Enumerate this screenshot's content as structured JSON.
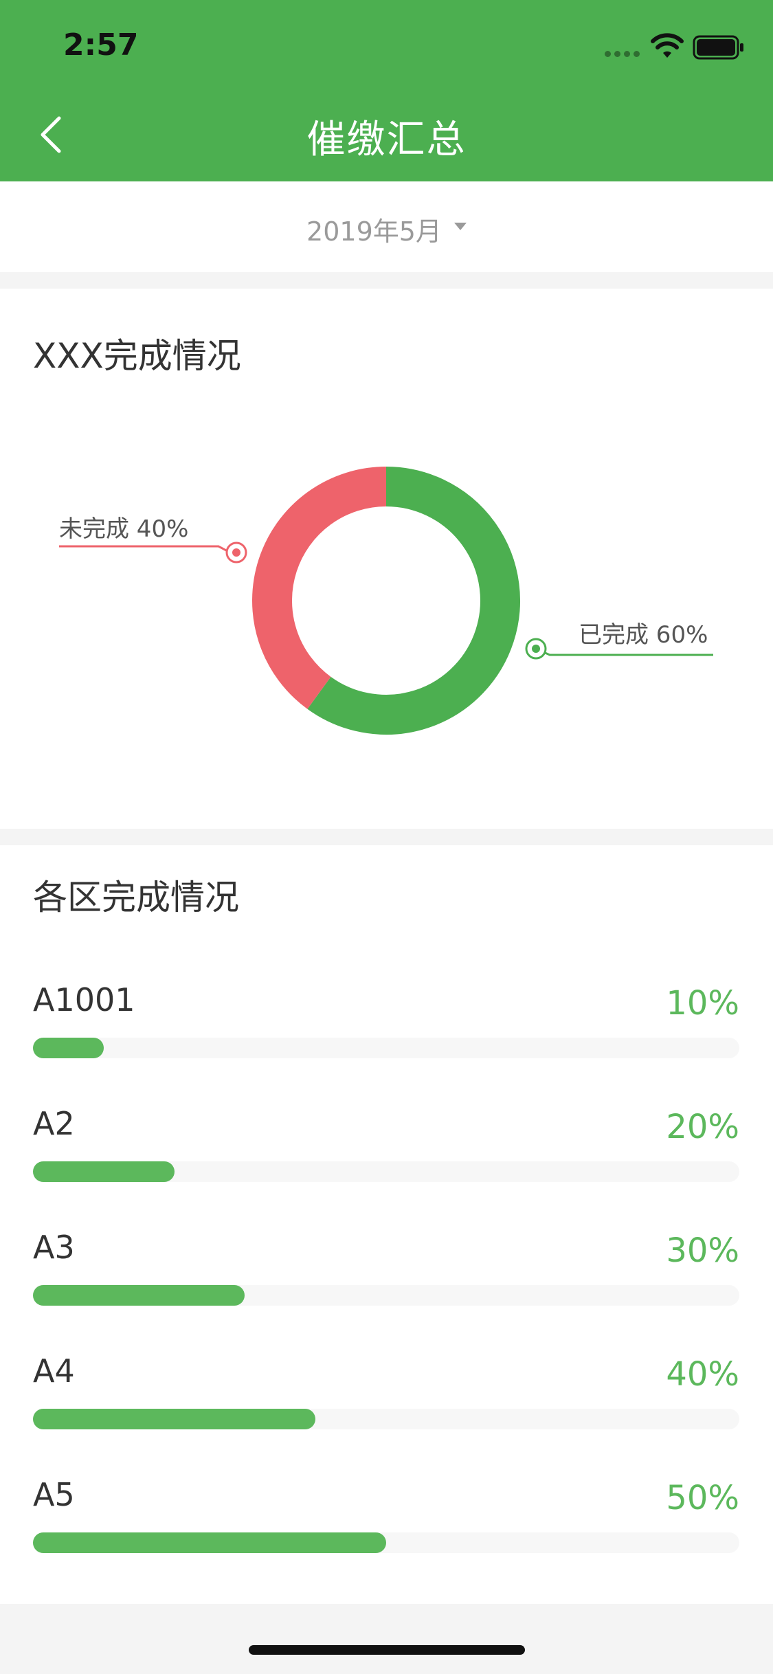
{
  "status_bar": {
    "time": "2:57"
  },
  "header": {
    "title": "催缴汇总",
    "back_icon": "chevron-left-icon"
  },
  "date_filter": {
    "value": "2019年5月"
  },
  "overview": {
    "title": "XXX完成情况",
    "chart_data": {
      "type": "pie",
      "categories": [
        "已完成",
        "未完成"
      ],
      "values": [
        60,
        40
      ],
      "labels": [
        "已完成 60%",
        "未完成 40%"
      ],
      "colors": [
        "#4caf50",
        "#ee636b"
      ]
    }
  },
  "regions": {
    "title": "各区完成情况",
    "items": [
      {
        "name": "A1001",
        "percent_label": "10%",
        "value": 10
      },
      {
        "name": "A2",
        "percent_label": "20%",
        "value": 20
      },
      {
        "name": "A3",
        "percent_label": "30%",
        "value": 30
      },
      {
        "name": "A4",
        "percent_label": "40%",
        "value": 40
      },
      {
        "name": "A5",
        "percent_label": "50%",
        "value": 50
      }
    ]
  },
  "colors": {
    "primary": "#4caf50",
    "accent_red": "#ee636b",
    "progress": "#5cb85c"
  }
}
